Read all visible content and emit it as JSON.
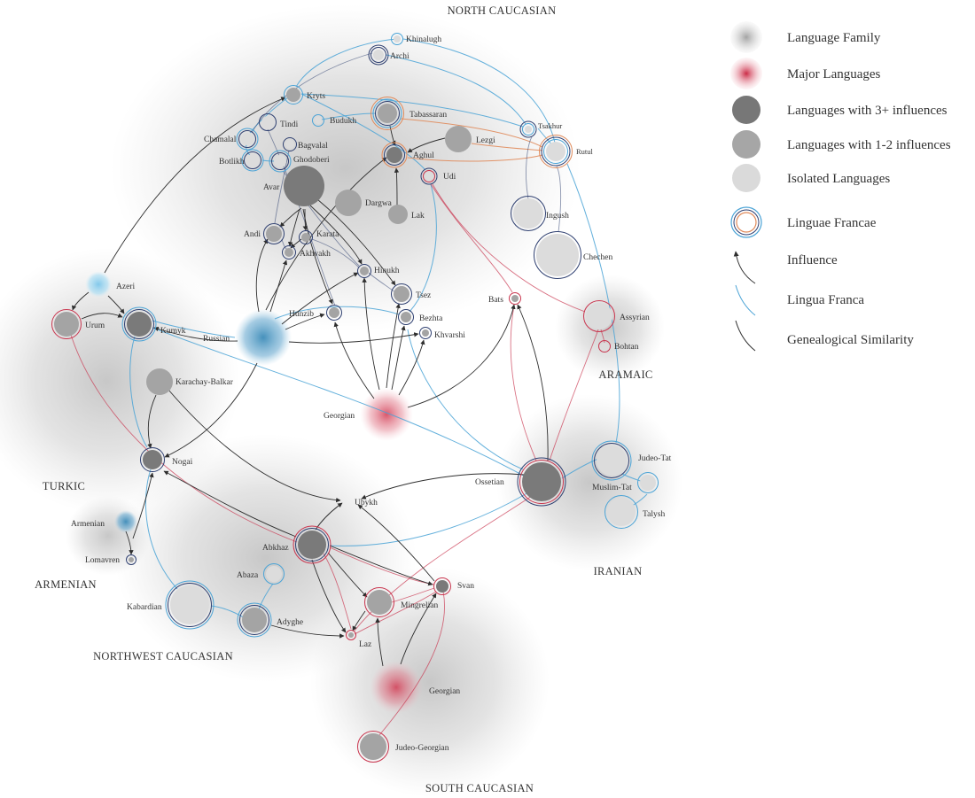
{
  "colors": {
    "family_gray": "#9a9a9a",
    "major_red": "#d23a52",
    "major_blue": "#3c8bb8",
    "dark_node": "#7a7a7a",
    "mid_node": "#a4a4a4",
    "light_node": "#dcdcdc",
    "influence_edge": "#2e2e2e",
    "lingua_blue": "#4aa3d6",
    "lingua_orange": "#e08a5a",
    "ring_red": "#c9354e",
    "ring_navy": "#2e3f70"
  },
  "families": [
    {
      "id": "north-caucasian",
      "label": "NORTH CAUCASIAN"
    },
    {
      "id": "turkic",
      "label": "TURKIC"
    },
    {
      "id": "armenian",
      "label": "ARMENIAN"
    },
    {
      "id": "northwest-caucasian",
      "label": "NORTHWEST CAUCASIAN"
    },
    {
      "id": "south-caucasian",
      "label": "SOUTH CAUCASIAN"
    },
    {
      "id": "aramaic",
      "label": "ARAMAIC"
    },
    {
      "id": "iranian",
      "label": "IRANIAN"
    }
  ],
  "legend": [
    {
      "key": "family",
      "label": "Language Family"
    },
    {
      "key": "major",
      "label": "Major Languages"
    },
    {
      "key": "three-plus",
      "label": "Languages with 3+ influences"
    },
    {
      "key": "one-two",
      "label": "Languages with 1-2 influences"
    },
    {
      "key": "isolated",
      "label": "Isolated Languages"
    },
    {
      "key": "lingua-francae",
      "label": "Linguae Francae"
    },
    {
      "key": "influence",
      "label": "Influence"
    },
    {
      "key": "lingua-franca",
      "label": "Lingua Franca"
    },
    {
      "key": "genealogical",
      "label": "Genealogical Similarity"
    }
  ],
  "nodes": [
    {
      "id": "khinalugh",
      "label": "Khinalugh",
      "type": "isolated",
      "rings": [
        "blue"
      ]
    },
    {
      "id": "archi",
      "label": "Archi",
      "type": "isolated",
      "rings": [
        "navy",
        "navy"
      ]
    },
    {
      "id": "kryts",
      "label": "Kryts",
      "type": "one-two",
      "rings": [
        "blue"
      ]
    },
    {
      "id": "tabassaran",
      "label": "Tabassaran",
      "type": "one-two",
      "rings": [
        "navy",
        "blue",
        "orange"
      ]
    },
    {
      "id": "budukh",
      "label": "Budukh",
      "type": "isolated",
      "rings": [
        "blue"
      ]
    },
    {
      "id": "tindi",
      "label": "Tindi",
      "type": "isolated",
      "rings": [
        "navy"
      ]
    },
    {
      "id": "tsakhur",
      "label": "Tsakhur",
      "type": "isolated",
      "rings": [
        "blue",
        "navy"
      ]
    },
    {
      "id": "rutul",
      "label": "Rutul",
      "type": "isolated",
      "rings": [
        "blue",
        "navy",
        "orange"
      ]
    },
    {
      "id": "chamalal",
      "label": "Chamalal",
      "type": "isolated",
      "rings": [
        "navy",
        "blue"
      ]
    },
    {
      "id": "bagvalal",
      "label": "Bagvalal",
      "type": "isolated",
      "rings": [
        "navy"
      ]
    },
    {
      "id": "lezgi",
      "label": "Lezgi",
      "type": "one-two",
      "rings": []
    },
    {
      "id": "botlikh",
      "label": "Botlikh",
      "type": "isolated",
      "rings": [
        "navy",
        "blue"
      ]
    },
    {
      "id": "ghodoberi",
      "label": "Ghodoberi",
      "type": "isolated",
      "rings": [
        "navy",
        "blue"
      ]
    },
    {
      "id": "aghul",
      "label": "Aghul",
      "type": "three-plus",
      "rings": [
        "navy",
        "orange"
      ]
    },
    {
      "id": "udi",
      "label": "Udi",
      "type": "isolated",
      "rings": [
        "red",
        "navy"
      ]
    },
    {
      "id": "avar",
      "label": "Avar",
      "type": "three-plus",
      "rings": []
    },
    {
      "id": "dargwa",
      "label": "Dargwa",
      "type": "one-two",
      "rings": []
    },
    {
      "id": "lak",
      "label": "Lak",
      "type": "one-two",
      "rings": []
    },
    {
      "id": "ingush",
      "label": "Ingush",
      "type": "isolated",
      "rings": [
        "navy"
      ]
    },
    {
      "id": "andi",
      "label": "Andi",
      "type": "one-two",
      "rings": [
        "navy"
      ]
    },
    {
      "id": "karata",
      "label": "Karata",
      "type": "one-two",
      "rings": [
        "navy"
      ]
    },
    {
      "id": "akhvakh",
      "label": "Akhvakh",
      "type": "one-two",
      "rings": [
        "navy"
      ]
    },
    {
      "id": "chechen",
      "label": "Chechen",
      "type": "isolated",
      "rings": [
        "navy"
      ]
    },
    {
      "id": "hinukh",
      "label": "Hinukh",
      "type": "one-two",
      "rings": [
        "navy"
      ]
    },
    {
      "id": "azeri",
      "label": "Azeri",
      "type": "major-blue",
      "rings": []
    },
    {
      "id": "tsez",
      "label": "Tsez",
      "type": "one-two",
      "rings": [
        "navy"
      ]
    },
    {
      "id": "bats",
      "label": "Bats",
      "type": "one-two",
      "rings": [
        "red"
      ]
    },
    {
      "id": "urum",
      "label": "Urum",
      "type": "one-two",
      "rings": [
        "red"
      ]
    },
    {
      "id": "kumyk",
      "label": "Kumyk",
      "type": "three-plus",
      "rings": [
        "navy",
        "blue"
      ]
    },
    {
      "id": "hunzib",
      "label": "Hunzib",
      "type": "one-two",
      "rings": [
        "navy"
      ]
    },
    {
      "id": "bezhta",
      "label": "Bezhta",
      "type": "one-two",
      "rings": [
        "navy"
      ]
    },
    {
      "id": "assyrian",
      "label": "Assyrian",
      "type": "isolated",
      "rings": [
        "red"
      ]
    },
    {
      "id": "russian",
      "label": "Russian",
      "type": "major-blue",
      "rings": []
    },
    {
      "id": "khvarshi",
      "label": "Khvarshi",
      "type": "one-two",
      "rings": [
        "navy"
      ]
    },
    {
      "id": "bohtan",
      "label": "Bohtan",
      "type": "isolated",
      "rings": [
        "red"
      ]
    },
    {
      "id": "karachay-balkar",
      "label": "Karachay-Balkar",
      "type": "one-two",
      "rings": []
    },
    {
      "id": "georgian-nc",
      "label": "Georgian",
      "type": "major-red",
      "rings": []
    },
    {
      "id": "judeo-tat",
      "label": "Judeo-Tat",
      "type": "isolated",
      "rings": [
        "navy",
        "blue"
      ]
    },
    {
      "id": "nogai",
      "label": "Nogai",
      "type": "three-plus",
      "rings": [
        "navy"
      ]
    },
    {
      "id": "ossetian",
      "label": "Ossetian",
      "type": "three-plus",
      "rings": [
        "red",
        "navy"
      ]
    },
    {
      "id": "muslim-tat",
      "label": "Muslim-Tat",
      "type": "isolated",
      "rings": [
        "blue"
      ]
    },
    {
      "id": "ubykh",
      "label": "Ubykh",
      "type": "isolated",
      "rings": []
    },
    {
      "id": "talysh",
      "label": "Talysh",
      "type": "isolated",
      "rings": [
        "blue"
      ]
    },
    {
      "id": "armenian",
      "label": "Armenian",
      "type": "major-blue",
      "rings": []
    },
    {
      "id": "abkhaz",
      "label": "Abkhaz",
      "type": "three-plus",
      "rings": [
        "navy",
        "red"
      ]
    },
    {
      "id": "lomavren",
      "label": "Lomavren",
      "type": "one-two",
      "rings": [
        "navy"
      ]
    },
    {
      "id": "abaza",
      "label": "Abaza",
      "type": "isolated",
      "rings": [
        "blue"
      ]
    },
    {
      "id": "svan",
      "label": "Svan",
      "type": "three-plus",
      "rings": [
        "red"
      ]
    },
    {
      "id": "kabardian",
      "label": "Kabardian",
      "type": "isolated",
      "rings": [
        "navy",
        "blue"
      ]
    },
    {
      "id": "mingrelian",
      "label": "Mingrelian",
      "type": "one-two",
      "rings": [
        "red"
      ]
    },
    {
      "id": "adyghe",
      "label": "Adyghe",
      "type": "one-two",
      "rings": [
        "navy",
        "blue"
      ]
    },
    {
      "id": "laz",
      "label": "Laz",
      "type": "one-two",
      "rings": [
        "red"
      ]
    },
    {
      "id": "georgian-sc",
      "label": "Georgian",
      "type": "major-red",
      "rings": []
    },
    {
      "id": "judeo-georgian",
      "label": "Judeo-Georgian",
      "type": "one-two",
      "rings": [
        "red"
      ]
    }
  ],
  "edges": [
    {
      "from": "azeri",
      "to": "kryts",
      "kind": "influence"
    },
    {
      "from": "azeri",
      "to": "urum",
      "kind": "influence"
    },
    {
      "from": "azeri",
      "to": "kumyk",
      "kind": "influence"
    },
    {
      "from": "russian",
      "to": "kumyk",
      "kind": "influence"
    },
    {
      "from": "russian",
      "to": "nogai",
      "kind": "influence"
    },
    {
      "from": "russian",
      "to": "hunzib",
      "kind": "influence"
    },
    {
      "from": "russian",
      "to": "hinukh",
      "kind": "influence"
    },
    {
      "from": "russian",
      "to": "khvarshi",
      "kind": "influence"
    },
    {
      "from": "russian",
      "to": "andi",
      "kind": "influence"
    },
    {
      "from": "russian",
      "to": "akhvakh",
      "kind": "influence"
    },
    {
      "from": "russian",
      "to": "aghul",
      "kind": "influence"
    },
    {
      "from": "avar",
      "to": "andi",
      "kind": "influence"
    },
    {
      "from": "avar",
      "to": "karata",
      "kind": "influence"
    },
    {
      "from": "avar",
      "to": "akhvakh",
      "kind": "influence"
    },
    {
      "from": "avar",
      "to": "hinukh",
      "kind": "influence"
    },
    {
      "from": "avar",
      "to": "tsez",
      "kind": "influence"
    },
    {
      "from": "lezgi",
      "to": "aghul",
      "kind": "influence"
    },
    {
      "from": "lak",
      "to": "aghul",
      "kind": "influence"
    },
    {
      "from": "tabassaran",
      "to": "aghul",
      "kind": "influence"
    },
    {
      "from": "georgian-nc",
      "to": "hunzib",
      "kind": "influence"
    },
    {
      "from": "georgian-nc",
      "to": "hinukh",
      "kind": "influence"
    },
    {
      "from": "georgian-nc",
      "to": "bezhta",
      "kind": "influence"
    },
    {
      "from": "georgian-nc",
      "to": "khvarshi",
      "kind": "influence"
    },
    {
      "from": "georgian-nc",
      "to": "bats",
      "kind": "influence"
    },
    {
      "from": "karachay-balkar",
      "to": "nogai",
      "kind": "influence"
    },
    {
      "from": "karachay-balkar",
      "to": "ubykh",
      "kind": "influence"
    },
    {
      "from": "kumyk",
      "to": "nogai",
      "kind": "influence"
    },
    {
      "from": "armenian",
      "to": "lomavren",
      "kind": "influence"
    },
    {
      "from": "abkhaz",
      "to": "nogai",
      "kind": "influence"
    },
    {
      "from": "abkhaz",
      "to": "ubykh",
      "kind": "influence"
    },
    {
      "from": "abkhaz",
      "to": "mingrelian",
      "kind": "influence"
    },
    {
      "from": "abkhaz",
      "to": "laz",
      "kind": "influence"
    },
    {
      "from": "abkhaz",
      "to": "svan",
      "kind": "influence"
    },
    {
      "from": "ossetian",
      "to": "ubykh",
      "kind": "influence"
    },
    {
      "from": "ossetian",
      "to": "bats",
      "kind": "influence"
    },
    {
      "from": "georgian-sc",
      "to": "mingrelian",
      "kind": "influence"
    },
    {
      "from": "georgian-sc",
      "to": "svan",
      "kind": "influence"
    },
    {
      "from": "adyghe",
      "to": "laz",
      "kind": "influence"
    },
    {
      "from": "svan",
      "to": "ubykh",
      "kind": "influence"
    },
    {
      "from": "khinalugh",
      "to": "rutul",
      "kind": "lingua"
    },
    {
      "from": "kryts",
      "to": "tsakhur",
      "kind": "lingua"
    },
    {
      "from": "budukh",
      "to": "tabassaran",
      "kind": "lingua"
    },
    {
      "from": "tsakhur",
      "to": "rutul",
      "kind": "lingua"
    },
    {
      "from": "rutul",
      "to": "judeo-tat",
      "kind": "lingua"
    },
    {
      "from": "tabassaran",
      "to": "rutul",
      "kind": "lingua-orange"
    },
    {
      "from": "aghul",
      "to": "rutul",
      "kind": "lingua-orange"
    },
    {
      "from": "lezgi",
      "to": "rutul",
      "kind": "lingua-orange"
    },
    {
      "from": "kumyk",
      "to": "russian",
      "kind": "lingua"
    },
    {
      "from": "kumyk",
      "to": "nogai",
      "kind": "lingua"
    },
    {
      "from": "ossetian",
      "to": "judeo-tat",
      "kind": "lingua"
    },
    {
      "from": "judeo-tat",
      "to": "muslim-tat",
      "kind": "lingua"
    },
    {
      "from": "muslim-tat",
      "to": "talysh",
      "kind": "lingua"
    },
    {
      "from": "kabardian",
      "to": "adyghe",
      "kind": "lingua"
    },
    {
      "from": "abaza",
      "to": "adyghe",
      "kind": "lingua"
    },
    {
      "from": "ossetian",
      "to": "abkhaz",
      "kind": "lingua"
    },
    {
      "from": "ossetian",
      "to": "bezhta",
      "kind": "lingua"
    },
    {
      "from": "udi",
      "to": "assyrian",
      "kind": "genealogical-red"
    },
    {
      "from": "urum",
      "to": "abkhaz",
      "kind": "genealogical-red"
    },
    {
      "from": "ossetian",
      "to": "laz",
      "kind": "genealogical-red"
    },
    {
      "from": "judeo-georgian",
      "to": "svan",
      "kind": "genealogical-red"
    },
    {
      "from": "assyrian",
      "to": "bohtan",
      "kind": "genealogical-red"
    },
    {
      "from": "aghul",
      "to": "ossetian",
      "kind": "genealogical-red"
    },
    {
      "from": "ingush",
      "to": "tsakhur",
      "kind": "genealogical"
    },
    {
      "from": "chechen",
      "to": "rutul",
      "kind": "genealogical"
    }
  ]
}
